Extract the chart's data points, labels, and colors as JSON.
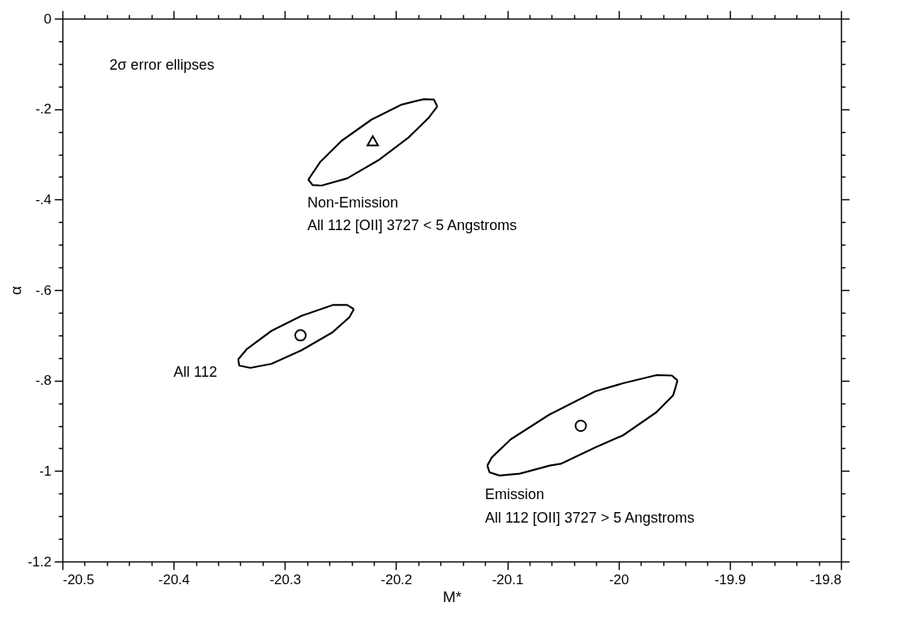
{
  "chart_data": {
    "type": "line",
    "xlabel": "M*",
    "ylabel": "α",
    "xlim": [
      -20.5,
      -19.8
    ],
    "ylim": [
      -1.2,
      0
    ],
    "xticks": [
      -20.5,
      {
        "value": -20.48,
        "label": null
      },
      {
        "value": -20.46,
        "label": null
      },
      {
        "value": -20.44,
        "label": null
      },
      {
        "value": -20.42,
        "label": null
      },
      -20.4,
      {
        "value": -20.38,
        "label": null
      },
      {
        "value": -20.36,
        "label": null
      },
      {
        "value": -20.34,
        "label": null
      },
      {
        "value": -20.32,
        "label": null
      },
      -20.3,
      {
        "value": -20.28,
        "label": null
      },
      {
        "value": -20.26,
        "label": null
      },
      {
        "value": -20.24,
        "label": null
      },
      {
        "value": -20.22,
        "label": null
      },
      -20.2,
      {
        "value": -20.18,
        "label": null
      },
      {
        "value": -20.16,
        "label": null
      },
      {
        "value": -20.14,
        "label": null
      },
      {
        "value": -20.12,
        "label": null
      },
      -20.1,
      {
        "value": -20.08,
        "label": null
      },
      {
        "value": -20.06,
        "label": null
      },
      {
        "value": -20.04,
        "label": null
      },
      {
        "value": -20.02,
        "label": null
      },
      -20,
      {
        "value": -19.98,
        "label": null
      },
      {
        "value": -19.96,
        "label": null
      },
      {
        "value": -19.94,
        "label": null
      },
      {
        "value": -19.92,
        "label": null
      },
      -19.9,
      {
        "value": -19.88,
        "label": null
      },
      {
        "value": -19.86,
        "label": null
      },
      {
        "value": -19.84,
        "label": null
      },
      {
        "value": -19.82,
        "label": null
      },
      -19.8
    ],
    "yticks": [
      0,
      {
        "value": -0.05,
        "label": null
      },
      {
        "value": -0.1,
        "label": null
      },
      {
        "value": -0.15,
        "label": null
      },
      {
        "value": -0.2,
        "label": "-.2"
      },
      {
        "value": -0.25,
        "label": null
      },
      {
        "value": -0.3,
        "label": null
      },
      {
        "value": -0.35,
        "label": null
      },
      {
        "value": -0.4,
        "label": "-.4"
      },
      {
        "value": -0.45,
        "label": null
      },
      {
        "value": -0.5,
        "label": null
      },
      {
        "value": -0.55,
        "label": null
      },
      {
        "value": -0.6,
        "label": "-.6"
      },
      {
        "value": -0.65,
        "label": null
      },
      {
        "value": -0.7,
        "label": null
      },
      {
        "value": -0.75,
        "label": null
      },
      {
        "value": -0.8,
        "label": "-.8"
      },
      {
        "value": -0.85,
        "label": null
      },
      {
        "value": -0.9,
        "label": null
      },
      {
        "value": -0.95,
        "label": null
      },
      -1,
      {
        "value": -1.05,
        "label": null
      },
      {
        "value": -1.1,
        "label": null
      },
      {
        "value": -1.15,
        "label": null
      },
      -1.2
    ],
    "grid": false,
    "series": [
      {
        "color": "#000000",
        "x": [
          -20.279,
          -20.268,
          -20.249,
          -20.222,
          -20.195,
          -20.175,
          -20.166,
          -20.163
        ],
        "values": [
          -0.356,
          -0.316,
          -0.27,
          -0.223,
          -0.19,
          -0.178,
          -0.179,
          -0.194
        ]
      },
      {
        "color": "#000000",
        "x": [
          -20.279,
          -20.275,
          -20.267,
          -20.244,
          -20.216,
          -20.189,
          -20.171,
          -20.163
        ],
        "values": [
          -0.356,
          -0.368,
          -0.369,
          -0.353,
          -0.313,
          -0.263,
          -0.22,
          -0.194
        ]
      },
      {
        "type": "scatter",
        "color": "#000000",
        "marker": "triangle",
        "x": [
          -20.221
        ],
        "values": [
          -0.27
        ]
      },
      {
        "color": "#000000",
        "x": [
          -20.342,
          -20.334,
          -20.312,
          -20.285,
          -20.257,
          -20.244,
          -20.238
        ],
        "values": [
          -0.753,
          -0.73,
          -0.69,
          -0.657,
          -0.633,
          -0.633,
          -0.642
        ]
      },
      {
        "color": "#000000",
        "x": [
          -20.342,
          -20.341,
          -20.331,
          -20.312,
          -20.285,
          -20.257,
          -20.242,
          -20.238
        ],
        "values": [
          -0.753,
          -0.767,
          -0.772,
          -0.763,
          -0.733,
          -0.693,
          -0.66,
          -0.642
        ]
      },
      {
        "type": "scatter",
        "color": "#000000",
        "marker": "circle",
        "x": [
          -20.286
        ],
        "values": [
          -0.7
        ]
      },
      {
        "color": "#000000",
        "x": [
          -20.118,
          -20.114,
          -20.097,
          -20.062,
          -20.021,
          -19.996,
          -19.966,
          -19.952,
          -19.947
        ],
        "values": [
          -0.988,
          -0.97,
          -0.93,
          -0.875,
          -0.824,
          -0.806,
          -0.788,
          -0.789,
          -0.8
        ]
      },
      {
        "color": "#000000",
        "x": [
          -20.118,
          -20.116,
          -20.107,
          -20.089,
          -20.062,
          -20.052,
          -20.021,
          -19.996,
          -19.966,
          -19.951,
          -19.947
        ],
        "values": [
          -0.988,
          -1.003,
          -1.01,
          -1.006,
          -0.988,
          -0.984,
          -0.948,
          -0.921,
          -0.87,
          -0.833,
          -0.8
        ]
      },
      {
        "type": "scatter",
        "color": "#000000",
        "marker": "circle",
        "x": [
          -20.034
        ],
        "values": [
          -0.9
        ]
      }
    ],
    "annotations": [
      "2σ error ellipses",
      "Non-Emission",
      "All 112 [OII] 3727 < 5 Angstroms",
      "All 112",
      "Emission",
      "All 112 [OII] 3727 > 5 Angstroms"
    ]
  }
}
